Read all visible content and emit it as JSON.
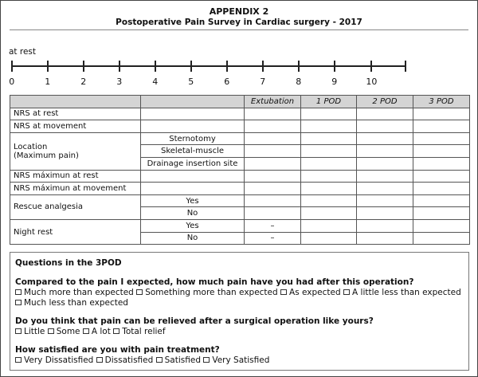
{
  "header": {
    "title": "APPENDIX 2",
    "subtitle": "Postoperative Pain Survey in Cardiac surgery - 2017"
  },
  "scale": {
    "label": "at rest",
    "ticks": [
      "0",
      "1",
      "2",
      "3",
      "4",
      "5",
      "6",
      "7",
      "8",
      "9",
      "10"
    ]
  },
  "table": {
    "columns": [
      "",
      "",
      "Extubation",
      "1 POD",
      "2 POD",
      "3 POD"
    ],
    "rows": {
      "nrs_rest": "NRS at rest",
      "nrs_movement": "NRS at movement",
      "location": "Location",
      "location_sub": "(Maximum pain)",
      "location_options": [
        "Sternotomy",
        "Skeletal-muscle",
        "Drainage insertion site"
      ],
      "nrs_max_rest": "NRS máximun at rest",
      "nrs_max_movement": "NRS máximun at  movement",
      "rescue": "Rescue analgesia",
      "night": "Night rest",
      "yes": "Yes",
      "no": "No",
      "dash": "–"
    }
  },
  "questions": {
    "title": "Questions in the 3POD",
    "q1": {
      "text": "Compared to the pain I expected, how much pain have you had after this operation?",
      "options": [
        "Much more than expected",
        "Something more than expected",
        "As expected",
        "A little less than expected",
        "Much less than expected"
      ]
    },
    "q2": {
      "text": "Do you think that pain can be relieved after a surgical operation like yours?",
      "options": [
        "Little",
        "Some",
        "A lot",
        "Total relief"
      ]
    },
    "q3": {
      "text": "How satisfied are you with pain treatment?",
      "options": [
        "Very Dissatisfied",
        "Dissatisfied",
        "Satisfied",
        "Very Satisfied"
      ]
    }
  }
}
